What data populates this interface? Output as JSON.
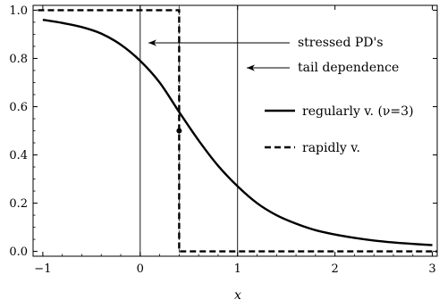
{
  "chart_data": {
    "type": "line",
    "title": "",
    "xlabel": "x",
    "ylabel": "",
    "xlim": [
      -1.1,
      3.05
    ],
    "ylim": [
      -0.02,
      1.02
    ],
    "grid": false,
    "legend_position": "right",
    "x_ticks": [
      -1,
      0,
      1,
      2,
      3
    ],
    "x_tick_labels": [
      "−1",
      "0",
      "1",
      "2",
      "3"
    ],
    "y_ticks": [
      0.0,
      0.2,
      0.4,
      0.6,
      0.8,
      1.0
    ],
    "y_tick_labels": [
      "0.0",
      "0.2",
      "0.4",
      "0.6",
      "0.8",
      "1.0"
    ],
    "series": [
      {
        "name": "regularly v. (ν=3)",
        "style": "solid",
        "x": [
          -1.0,
          -0.8,
          -0.6,
          -0.4,
          -0.2,
          0.0,
          0.2,
          0.4,
          0.6,
          0.8,
          1.0,
          1.2,
          1.4,
          1.6,
          1.8,
          2.0,
          2.2,
          2.4,
          2.6,
          2.8,
          3.0
        ],
        "y": [
          0.96,
          0.947,
          0.93,
          0.903,
          0.857,
          0.79,
          0.7,
          0.578,
          0.46,
          0.355,
          0.27,
          0.2,
          0.15,
          0.115,
          0.088,
          0.07,
          0.056,
          0.045,
          0.037,
          0.031,
          0.026
        ]
      },
      {
        "name": "rapidly v.",
        "style": "dashed",
        "x": [
          -1.05,
          0.4,
          0.4,
          3.05
        ],
        "y": [
          1.0,
          1.0,
          0.0,
          0.0
        ]
      }
    ],
    "vertical_lines": [
      {
        "x": 0.0,
        "style": "solid"
      },
      {
        "x": 1.0,
        "style": "solid"
      },
      {
        "x": 0.4,
        "style": "dashed"
      }
    ],
    "points": [
      {
        "x": 0.4,
        "y": 0.5
      }
    ],
    "annotations": [
      {
        "text": "stressed PD's",
        "arrow_to_x": 0.3,
        "arrow_to_y": 0.9
      },
      {
        "text": "tail dependence",
        "arrow_to_x": 1.1,
        "arrow_to_y": 0.85
      }
    ]
  }
}
